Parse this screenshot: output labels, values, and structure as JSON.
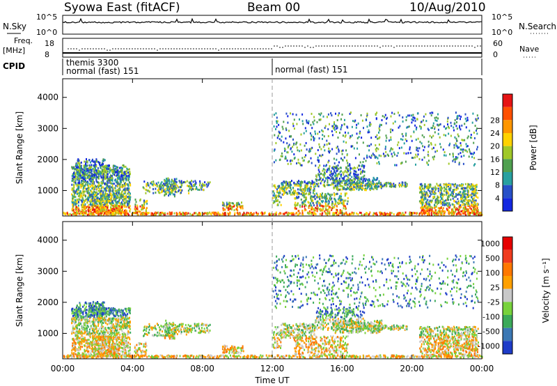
{
  "header": {
    "station": "Syowa East (fitACF)",
    "beam": "Beam 00",
    "date": "10/Aug/2010"
  },
  "strip_labels": {
    "nsky": "N.Sky",
    "nsky_ticks": [
      "10^5",
      "10^0"
    ],
    "nsearch": "N.Search",
    "nsearch_ticks": [
      "10^5",
      "10^0"
    ],
    "freq": "Freq.",
    "freq_unit": "[MHz]",
    "freq_ticks": [
      "18",
      "8"
    ],
    "nave": "Nave",
    "nave_ticks": [
      "60",
      "0"
    ],
    "cpid": "CPID"
  },
  "cpid_segments": [
    {
      "name": "themis",
      "id": "3300",
      "mode": "normal (fast)",
      "code": "151"
    },
    {
      "mode": "normal (fast)",
      "code": "151"
    }
  ],
  "chart_data": [
    {
      "type": "heatmap",
      "title": "",
      "xlabel": "Time UT",
      "ylabel": "Slant Range [km]",
      "x_ticks": [
        "00:00",
        "04:00",
        "08:00",
        "12:00",
        "16:00",
        "20:00",
        "00:00"
      ],
      "y_ticks": [
        "1000",
        "2000",
        "3000",
        "4000"
      ],
      "ylim": [
        180,
        4600
      ],
      "colorbar": {
        "label": "Power [dB]",
        "ticks": [
          "4",
          "8",
          "12",
          "16",
          "20",
          "24",
          "28"
        ],
        "colors": [
          "#1428e0",
          "#2850c8",
          "#28a0a0",
          "#50a050",
          "#a0c828",
          "#ffd200",
          "#ff9600",
          "#ff5000",
          "#e61414"
        ]
      }
    },
    {
      "type": "heatmap",
      "title": "",
      "xlabel": "Time UT",
      "ylabel": "Slant Range [km]",
      "x_ticks": [
        "00:00",
        "04:00",
        "08:00",
        "12:00",
        "16:00",
        "20:00",
        "00:00"
      ],
      "y_ticks": [
        "1000",
        "2000",
        "3000",
        "4000"
      ],
      "ylim": [
        180,
        4600
      ],
      "colorbar": {
        "label": "Velocity [m s⁻¹]",
        "ticks": [
          "1000",
          "500",
          "100",
          "25",
          "-25",
          "-100",
          "-500",
          "-1000"
        ],
        "colors": [
          "#1e3cc8",
          "#3c78b4",
          "#3caa5a",
          "#78d23c",
          "#c8c8c8",
          "#ffa000",
          "#ff7800",
          "#f03c1e",
          "#e60000"
        ]
      }
    }
  ]
}
